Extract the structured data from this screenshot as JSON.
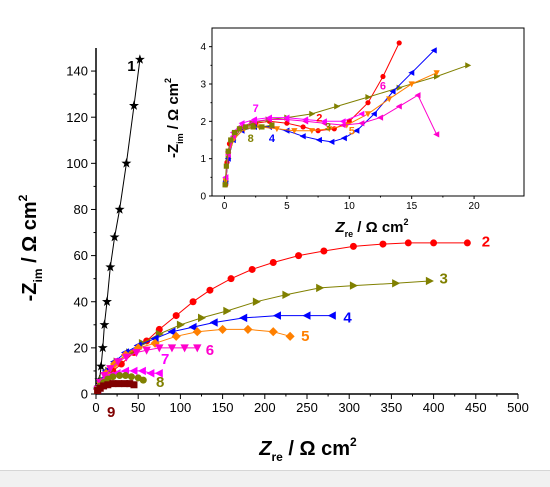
{
  "chart_data": [
    {
      "type": "scatter",
      "role": "main",
      "xlabel": {
        "main": "Z",
        "sub": "re",
        "unit": " / Ω cm",
        "sup": "2"
      },
      "ylabel": {
        "pre": "-Z",
        "sub": "im",
        "unit": " / Ω cm",
        "sup": "2"
      },
      "xlim": [
        0,
        500
      ],
      "ylim": [
        0,
        150
      ],
      "xticks": [
        0,
        50,
        100,
        150,
        200,
        250,
        300,
        350,
        400,
        450,
        500
      ],
      "yticks": [
        0,
        20,
        40,
        60,
        80,
        100,
        120,
        140
      ],
      "series": [
        {
          "name": "1",
          "color": "#000000",
          "marker": "star",
          "x": [
            2,
            4,
            6,
            8,
            10,
            13,
            17,
            22,
            28,
            36,
            45,
            52
          ],
          "y": [
            2,
            6,
            12,
            20,
            30,
            40,
            55,
            68,
            80,
            100,
            125,
            145
          ]
        },
        {
          "name": "2",
          "color": "#ff0000",
          "marker": "circle",
          "x": [
            2,
            6,
            12,
            20,
            30,
            45,
            60,
            75,
            95,
            115,
            135,
            160,
            185,
            210,
            240,
            270,
            305,
            340,
            370,
            400,
            440
          ],
          "y": [
            2,
            4,
            7,
            10,
            13,
            18,
            23,
            28,
            34,
            40,
            45,
            50,
            54,
            57,
            60,
            62,
            64,
            65,
            65.5,
            65.5,
            65.5
          ]
        },
        {
          "name": "3",
          "color": "#808000",
          "marker": "triangle-right",
          "x": [
            2,
            8,
            15,
            25,
            40,
            55,
            75,
            100,
            125,
            155,
            190,
            225,
            265,
            305,
            355,
            395
          ],
          "y": [
            2,
            6,
            10,
            14,
            18,
            22,
            26,
            30,
            33,
            36,
            40,
            43,
            46,
            47,
            48,
            49
          ]
        },
        {
          "name": "4",
          "color": "#0000ff",
          "marker": "triangle-left",
          "x": [
            2,
            6,
            12,
            22,
            35,
            50,
            70,
            90,
            115,
            140,
            175,
            215,
            250,
            280
          ],
          "y": [
            2,
            6,
            10,
            14,
            18,
            21,
            24,
            27,
            29,
            31,
            33,
            34,
            34,
            34
          ]
        },
        {
          "name": "5",
          "color": "#ff8000",
          "marker": "diamond",
          "x": [
            2,
            6,
            12,
            22,
            35,
            50,
            70,
            95,
            120,
            150,
            180,
            210,
            230
          ],
          "y": [
            2,
            5,
            9,
            13,
            17,
            20,
            22,
            25,
            27,
            28,
            28,
            27,
            25
          ]
        },
        {
          "name": "6",
          "color": "#ff00cc",
          "marker": "triangle-down",
          "x": [
            2,
            5,
            10,
            17,
            26,
            36,
            48,
            60,
            75,
            90,
            105,
            120
          ],
          "y": [
            2,
            5,
            8,
            11,
            14,
            16,
            18,
            19,
            20,
            20,
            20,
            20
          ]
        },
        {
          "name": "7",
          "color": "#ff00ff",
          "marker": "triangle-left",
          "x": [
            2,
            5,
            10,
            17,
            25,
            35,
            45,
            55,
            65,
            75
          ],
          "y": [
            2,
            4,
            6,
            8,
            9,
            10,
            10,
            10,
            9,
            9
          ]
        },
        {
          "name": "8",
          "color": "#808000",
          "marker": "circle",
          "x": [
            2,
            5,
            9,
            14,
            20,
            28,
            35,
            42,
            50,
            56
          ],
          "y": [
            2,
            3.5,
            5,
            6.5,
            7.5,
            8,
            8,
            7.5,
            7,
            6
          ]
        },
        {
          "name": "9",
          "color": "#800000",
          "marker": "square",
          "x": [
            2,
            5,
            9,
            14,
            20,
            27,
            34,
            40,
            45
          ],
          "y": [
            1.5,
            2.5,
            3.5,
            4,
            4.5,
            4.5,
            4.5,
            4.5,
            4
          ]
        }
      ],
      "labels": [
        {
          "text": "1",
          "color": "#000000",
          "x": 42,
          "y": 140
        },
        {
          "text": "2",
          "color": "#ff0000",
          "x": 462,
          "y": 64
        },
        {
          "text": "3",
          "color": "#808000",
          "x": 412,
          "y": 48
        },
        {
          "text": "4",
          "color": "#0000ff",
          "x": 298,
          "y": 31
        },
        {
          "text": "5",
          "color": "#ff8000",
          "x": 248,
          "y": 23
        },
        {
          "text": "6",
          "color": "#ff00cc",
          "x": 135,
          "y": 17
        },
        {
          "text": "7",
          "color": "#ff00ff",
          "x": 82,
          "y": 13
        },
        {
          "text": "8",
          "color": "#808000",
          "x": 76,
          "y": 3
        },
        {
          "text": "9",
          "color": "#800000",
          "x": 18,
          "y": -10
        }
      ]
    },
    {
      "type": "scatter",
      "role": "inset",
      "xlabel": {
        "main": "Z",
        "sub": "re",
        "unit": " / Ω cm",
        "sup": "2"
      },
      "ylabel": {
        "pre": "-Z",
        "sub": "im",
        "unit": " / Ω cm",
        "sup": "2"
      },
      "xlim": [
        -1,
        24
      ],
      "ylim": [
        0,
        4.5
      ],
      "xticks": [
        0,
        5,
        10,
        15,
        20
      ],
      "yticks": [
        0,
        1,
        2,
        3,
        4
      ],
      "series": [
        {
          "name": "2",
          "color": "#ff0000",
          "marker": "circle",
          "x": [
            0.1,
            0.2,
            0.4,
            0.8,
            1.5,
            2.5,
            3.6,
            5.0,
            6.3,
            7.5,
            8.8,
            10,
            11.5,
            12.7,
            14
          ],
          "y": [
            0.3,
            0.9,
            1.4,
            1.7,
            1.85,
            1.95,
            2.0,
            1.95,
            1.85,
            1.75,
            1.8,
            2.0,
            2.5,
            3.2,
            4.1
          ]
        },
        {
          "name": "3",
          "color": "#808000",
          "marker": "triangle-right",
          "x": [
            0.1,
            0.3,
            0.7,
            1.3,
            2.2,
            3.5,
            5,
            7,
            9,
            11.5,
            14,
            17,
            19.5
          ],
          "y": [
            0.4,
            1.0,
            1.5,
            1.8,
            1.95,
            2.05,
            2.1,
            2.2,
            2.4,
            2.65,
            2.9,
            3.2,
            3.5
          ]
        },
        {
          "name": "4",
          "color": "#0000ff",
          "marker": "triangle-left",
          "x": [
            0.1,
            0.3,
            0.7,
            1.4,
            2.4,
            3.6,
            5.0,
            6.3,
            7.6,
            8.6,
            9.6,
            10.6,
            12,
            13.5,
            15,
            16.8
          ],
          "y": [
            0.4,
            1.0,
            1.5,
            1.75,
            1.85,
            1.85,
            1.75,
            1.6,
            1.5,
            1.45,
            1.55,
            1.75,
            2.2,
            2.8,
            3.3,
            3.9
          ]
        },
        {
          "name": "5",
          "color": "#ff8000",
          "marker": "triangle-down",
          "x": [
            0.1,
            0.3,
            0.8,
            1.6,
            2.8,
            4.2,
            5.6,
            7,
            8.4,
            9.8,
            11.5,
            13.2,
            15,
            17
          ],
          "y": [
            0.4,
            1.1,
            1.55,
            1.8,
            1.85,
            1.8,
            1.75,
            1.75,
            1.8,
            1.9,
            2.2,
            2.6,
            3.0,
            3.3
          ]
        },
        {
          "name": "6",
          "color": "#ff00cc",
          "marker": "triangle-left",
          "x": [
            0.1,
            0.3,
            0.7,
            1.4,
            2.4,
            3.6,
            5,
            6.5,
            8,
            9.5,
            11,
            12.5,
            14,
            15.5,
            17
          ],
          "y": [
            0.5,
            1.1,
            1.6,
            1.85,
            2.0,
            2.05,
            2.05,
            2.0,
            1.95,
            1.9,
            1.95,
            2.1,
            2.4,
            2.7,
            1.65
          ]
        },
        {
          "name": "7",
          "color": "#ff00ff",
          "marker": "triangle-left",
          "x": [
            0.1,
            0.3,
            0.7,
            1.4,
            2.4,
            3.6,
            5,
            6.5,
            8,
            9.5,
            11
          ],
          "y": [
            0.5,
            1.2,
            1.7,
            1.95,
            2.05,
            2.1,
            2.1,
            2.05,
            2.0,
            2.0,
            2.2
          ]
        },
        {
          "name": "8",
          "color": "#808000",
          "marker": "square",
          "x": [
            0.05,
            0.15,
            0.3,
            0.5,
            0.8,
            1.2,
            1.7,
            2.3,
            3,
            3.8
          ],
          "y": [
            0.3,
            0.8,
            1.2,
            1.5,
            1.7,
            1.8,
            1.85,
            1.85,
            1.85,
            1.9
          ]
        }
      ],
      "labels": [
        {
          "text": "7",
          "color": "#ff00ff",
          "x": 2.5,
          "y": 2.25
        },
        {
          "text": "2",
          "color": "#ff0000",
          "x": 7.6,
          "y": 2.0
        },
        {
          "text": "3",
          "color": "#808000",
          "x": 8.3,
          "y": 1.75
        },
        {
          "text": "5",
          "color": "#ff8000",
          "x": 10.2,
          "y": 1.65
        },
        {
          "text": "6",
          "color": "#ff00cc",
          "x": 12.7,
          "y": 2.85
        },
        {
          "text": "4",
          "color": "#0000ff",
          "x": 3.8,
          "y": 1.45
        },
        {
          "text": "8",
          "color": "#808000",
          "x": 2.1,
          "y": 1.45
        }
      ]
    }
  ]
}
